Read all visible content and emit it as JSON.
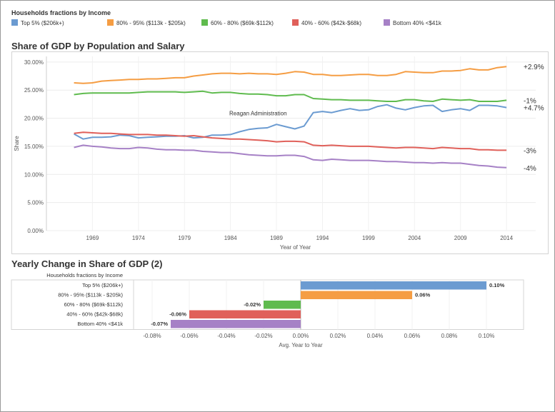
{
  "legend": {
    "title": "Households fractions by Income",
    "items": [
      {
        "label": "Top 5% ($206k+)",
        "color": "#6b9bd1"
      },
      {
        "label": "80% - 95% ($113k - $205k)",
        "color": "#f59d43"
      },
      {
        "label": "60% - 80% ($69k-$112k)",
        "color": "#5fbb4e"
      },
      {
        "label": "40% - 60% ($42k-$68k)",
        "color": "#e0605a"
      },
      {
        "label": "Bottom 40% <$41k",
        "color": "#a681c6"
      }
    ]
  },
  "chart_data": [
    {
      "type": "line",
      "title": "Share of GDP by Population and Salary",
      "xlabel": "Year of Year",
      "ylabel": "Share",
      "xlim": [
        1964,
        2015
      ],
      "ylim": [
        0,
        0.31
      ],
      "x_ticks": [
        1969,
        1974,
        1979,
        1984,
        1989,
        1994,
        1999,
        2004,
        2009,
        2014
      ],
      "y_ticks": [
        {
          "v": 0.0,
          "label": "0.00%"
        },
        {
          "v": 0.05,
          "label": "5.00%"
        },
        {
          "v": 0.1,
          "label": "10.00%"
        },
        {
          "v": 0.15,
          "label": "15.00%"
        },
        {
          "v": 0.2,
          "label": "20.00%"
        },
        {
          "v": 0.25,
          "label": "25.00%"
        },
        {
          "v": 0.3,
          "label": "30.00%"
        }
      ],
      "annotation": {
        "text": "Reagan Administration",
        "x": 1987,
        "y": 0.205
      },
      "x": [
        1967,
        1968,
        1969,
        1970,
        1971,
        1972,
        1973,
        1974,
        1975,
        1976,
        1977,
        1978,
        1979,
        1980,
        1981,
        1982,
        1983,
        1984,
        1985,
        1986,
        1987,
        1988,
        1989,
        1990,
        1991,
        1992,
        1993,
        1994,
        1995,
        1996,
        1997,
        1998,
        1999,
        2000,
        2001,
        2002,
        2003,
        2004,
        2005,
        2006,
        2007,
        2008,
        2009,
        2010,
        2011,
        2012,
        2013,
        2014
      ],
      "series": [
        {
          "name": "Top 5% ($206k+)",
          "color": "#6b9bd1",
          "end_label": "+4.7%",
          "values": [
            0.172,
            0.163,
            0.166,
            0.166,
            0.167,
            0.17,
            0.169,
            0.165,
            0.166,
            0.167,
            0.168,
            0.168,
            0.169,
            0.165,
            0.166,
            0.17,
            0.17,
            0.171,
            0.176,
            0.18,
            0.182,
            0.183,
            0.189,
            0.185,
            0.181,
            0.186,
            0.21,
            0.212,
            0.21,
            0.214,
            0.217,
            0.214,
            0.215,
            0.221,
            0.224,
            0.218,
            0.215,
            0.219,
            0.222,
            0.223,
            0.212,
            0.215,
            0.217,
            0.214,
            0.223,
            0.223,
            0.222,
            0.219
          ]
        },
        {
          "name": "80% - 95% ($113k - $205k)",
          "color": "#f59d43",
          "end_label": "+2.9%",
          "values": [
            0.263,
            0.262,
            0.263,
            0.266,
            0.267,
            0.268,
            0.269,
            0.269,
            0.27,
            0.27,
            0.271,
            0.272,
            0.272,
            0.275,
            0.277,
            0.279,
            0.28,
            0.28,
            0.279,
            0.28,
            0.279,
            0.279,
            0.278,
            0.28,
            0.283,
            0.282,
            0.278,
            0.278,
            0.276,
            0.276,
            0.277,
            0.278,
            0.278,
            0.276,
            0.276,
            0.278,
            0.283,
            0.282,
            0.281,
            0.281,
            0.284,
            0.284,
            0.285,
            0.288,
            0.286,
            0.286,
            0.29,
            0.292
          ]
        },
        {
          "name": "60% - 80% ($69k-$112k)",
          "color": "#5fbb4e",
          "end_label": "-1%",
          "values": [
            0.242,
            0.244,
            0.245,
            0.245,
            0.245,
            0.245,
            0.245,
            0.246,
            0.247,
            0.247,
            0.247,
            0.247,
            0.246,
            0.247,
            0.248,
            0.245,
            0.246,
            0.246,
            0.244,
            0.243,
            0.243,
            0.242,
            0.24,
            0.24,
            0.242,
            0.242,
            0.235,
            0.234,
            0.233,
            0.233,
            0.232,
            0.232,
            0.232,
            0.231,
            0.23,
            0.23,
            0.233,
            0.233,
            0.231,
            0.23,
            0.234,
            0.233,
            0.232,
            0.233,
            0.23,
            0.23,
            0.23,
            0.232
          ]
        },
        {
          "name": "40% - 60% ($42k-$68k)",
          "color": "#e0605a",
          "end_label": "-3%",
          "values": [
            0.173,
            0.175,
            0.174,
            0.173,
            0.173,
            0.172,
            0.171,
            0.171,
            0.171,
            0.17,
            0.17,
            0.169,
            0.168,
            0.169,
            0.167,
            0.165,
            0.164,
            0.163,
            0.163,
            0.162,
            0.161,
            0.16,
            0.158,
            0.159,
            0.159,
            0.158,
            0.152,
            0.151,
            0.152,
            0.151,
            0.15,
            0.15,
            0.15,
            0.149,
            0.148,
            0.147,
            0.148,
            0.148,
            0.147,
            0.146,
            0.148,
            0.147,
            0.146,
            0.146,
            0.144,
            0.144,
            0.143,
            0.143
          ]
        },
        {
          "name": "Bottom 40% <$41k",
          "color": "#a681c6",
          "end_label": "-4%",
          "values": [
            0.148,
            0.152,
            0.15,
            0.149,
            0.147,
            0.146,
            0.146,
            0.148,
            0.147,
            0.145,
            0.144,
            0.144,
            0.143,
            0.143,
            0.141,
            0.14,
            0.139,
            0.139,
            0.137,
            0.135,
            0.134,
            0.133,
            0.133,
            0.134,
            0.134,
            0.132,
            0.126,
            0.125,
            0.127,
            0.126,
            0.125,
            0.125,
            0.125,
            0.124,
            0.123,
            0.123,
            0.122,
            0.121,
            0.121,
            0.12,
            0.121,
            0.12,
            0.12,
            0.118,
            0.116,
            0.115,
            0.113,
            0.112
          ]
        }
      ]
    },
    {
      "type": "bar",
      "orientation": "horizontal",
      "title": "Yearly Change in Share of GDP (2)",
      "row_header": "Households fractions by Income",
      "xlabel": "Avg. Year to Year",
      "xlim": [
        -0.09,
        0.12
      ],
      "x_ticks": [
        {
          "v": -0.08,
          "label": "-0.08%"
        },
        {
          "v": -0.06,
          "label": "-0.06%"
        },
        {
          "v": -0.04,
          "label": "-0.04%"
        },
        {
          "v": -0.02,
          "label": "-0.02%"
        },
        {
          "v": 0.0,
          "label": "0.00%"
        },
        {
          "v": 0.02,
          "label": "0.02%"
        },
        {
          "v": 0.04,
          "label": "0.04%"
        },
        {
          "v": 0.06,
          "label": "0.06%"
        },
        {
          "v": 0.08,
          "label": "0.08%"
        },
        {
          "v": 0.1,
          "label": "0.10%"
        }
      ],
      "categories": [
        "Top 5% ($206k+)",
        "80% - 95% ($113k - $205k)",
        "60% - 80% ($69k-$112k)",
        "40% - 60% ($42k-$68k)",
        "Bottom 40% <$41k"
      ],
      "values": [
        0.1,
        0.06,
        -0.02,
        -0.06,
        -0.07
      ],
      "value_labels": [
        "0.10%",
        "0.06%",
        "-0.02%",
        "-0.06%",
        "-0.07%"
      ],
      "colors": [
        "#6b9bd1",
        "#f59d43",
        "#5fbb4e",
        "#e0605a",
        "#a681c6"
      ]
    }
  ]
}
